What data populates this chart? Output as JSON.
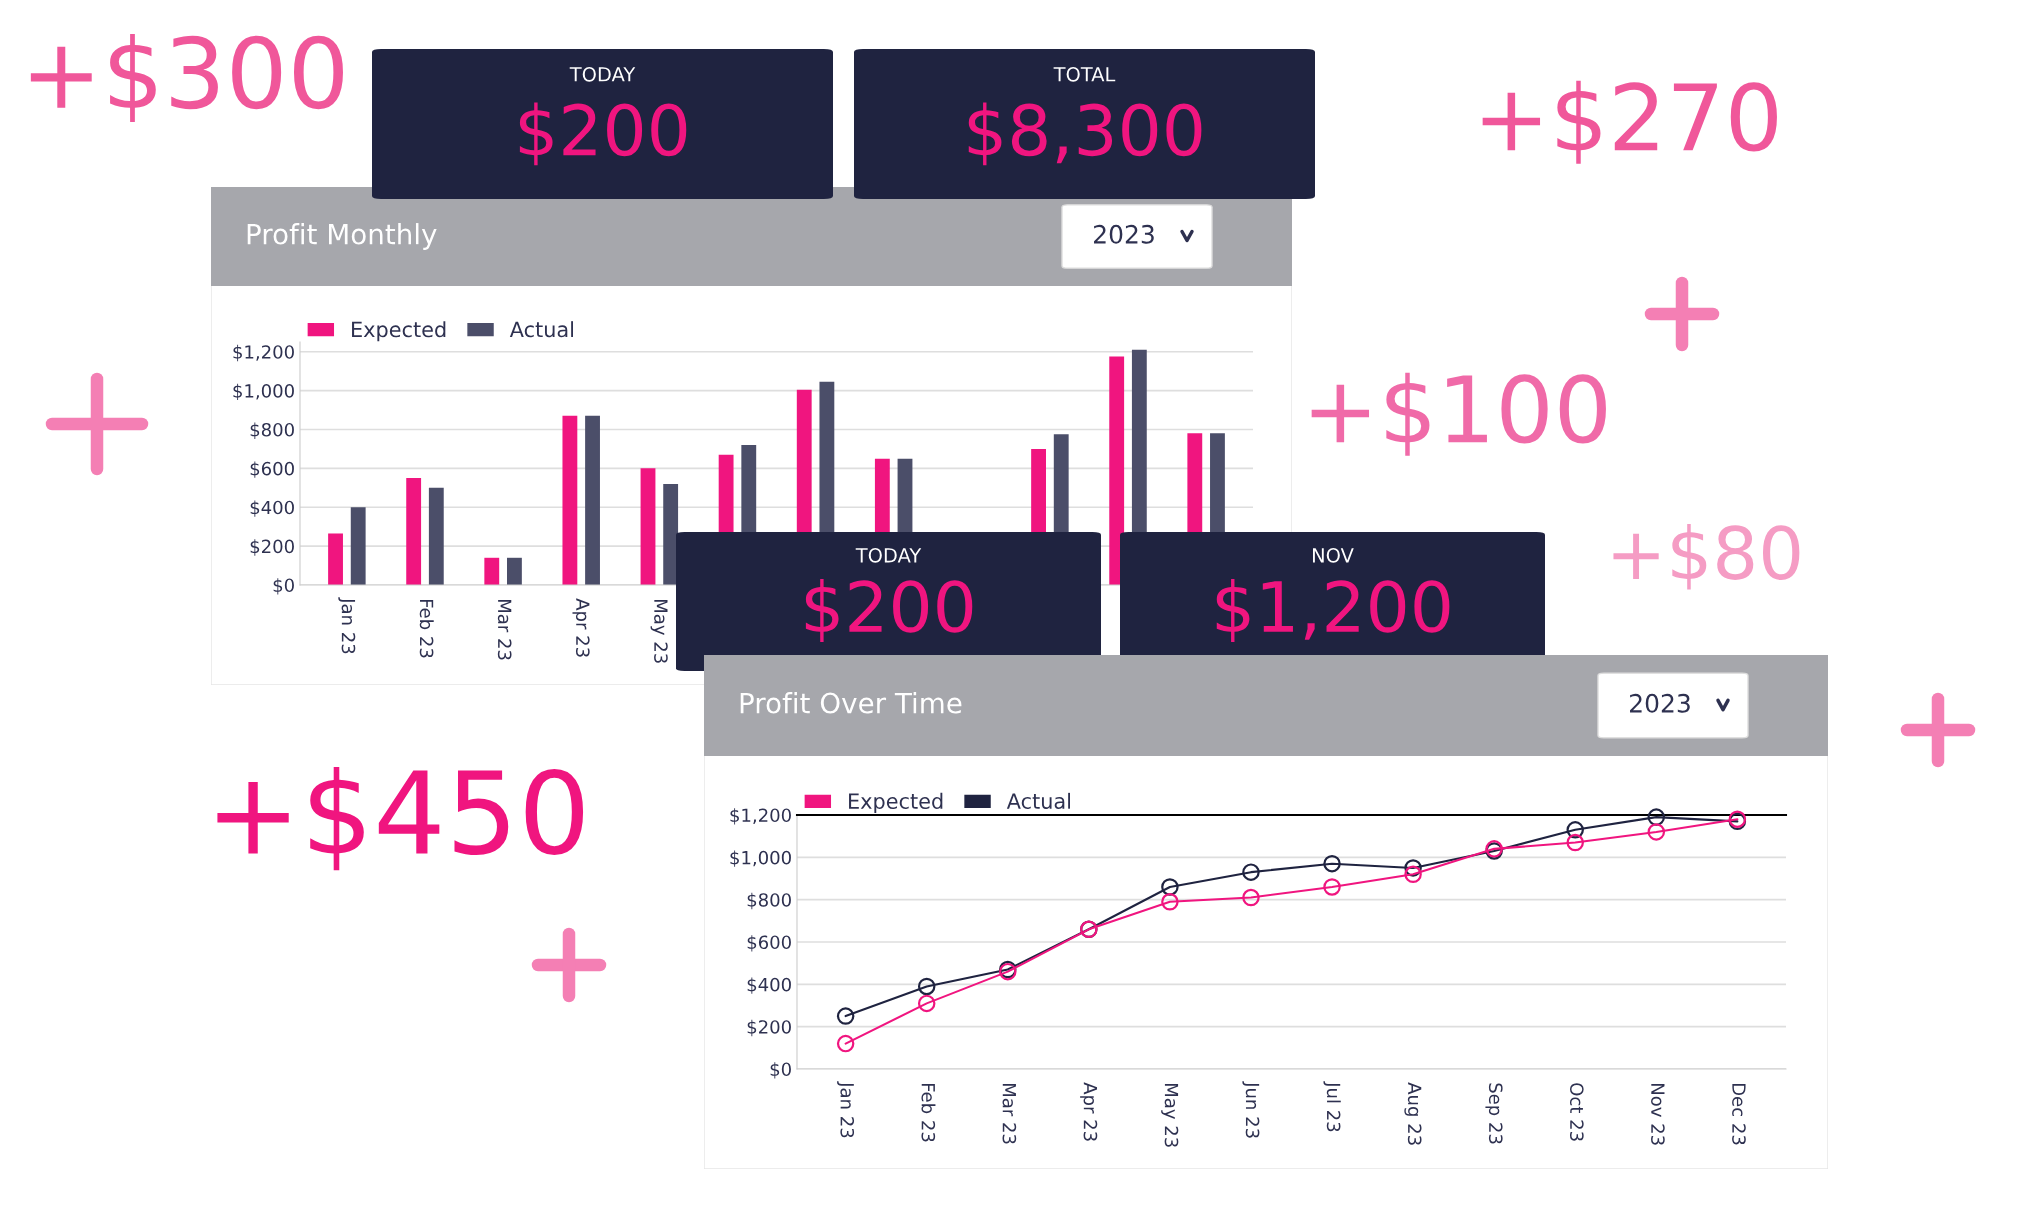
{
  "chart_data": [
    {
      "type": "bar",
      "title": "Profit Monthly",
      "annotations": [
        "2023"
      ],
      "categories": [
        "Jan 23",
        "Feb 23",
        "Mar 23",
        "Apr 23",
        "May 23",
        null,
        null,
        null,
        null,
        null,
        null,
        null
      ],
      "series": [
        {
          "name": "Expected",
          "color": "#f0157f",
          "values": [
            265,
            550,
            140,
            870,
            600,
            670,
            1005,
            650,
            null,
            700,
            1175,
            780
          ]
        },
        {
          "name": "Actual",
          "color": "#4b4e69",
          "values": [
            400,
            500,
            140,
            870,
            520,
            720,
            1045,
            650,
            null,
            775,
            1210,
            780
          ]
        }
      ],
      "ylim": [
        0,
        1250
      ],
      "yticks": [
        {
          "value": 0,
          "label": "$0"
        },
        {
          "value": 200,
          "label": "$200"
        },
        {
          "value": 400,
          "label": "$400"
        },
        {
          "value": 600,
          "label": "$600"
        },
        {
          "value": 800,
          "label": "$800"
        },
        {
          "value": 1000,
          "label": "$1,000"
        },
        {
          "value": 1200,
          "label": "$1,200"
        }
      ],
      "grid": "y",
      "legend": "top left"
    },
    {
      "type": "line",
      "title": "Profit Over Time",
      "annotations": [
        "2023"
      ],
      "categories": [
        "Jan 23",
        "Feb 23",
        "Mar 23",
        "Apr 23",
        "May 23",
        "Jun 23",
        "Jul 23",
        "Aug 23",
        "Sep 23",
        "Oct 23",
        "Nov 23",
        "Dec 23"
      ],
      "series": [
        {
          "name": "Expected",
          "color": "#f0157f",
          "values": [
            120,
            310,
            460,
            660,
            790,
            810,
            860,
            920,
            1040,
            1070,
            1120,
            1180
          ]
        },
        {
          "name": "Actual",
          "color": "#1f2340",
          "values": [
            250,
            390,
            470,
            660,
            860,
            930,
            970,
            950,
            1030,
            1130,
            1190,
            1170
          ]
        }
      ],
      "ylim": [
        0,
        1200
      ],
      "yticks": [
        {
          "value": 0,
          "label": "$0"
        },
        {
          "value": 200,
          "label": "$200"
        },
        {
          "value": 400,
          "label": "$400"
        },
        {
          "value": 600,
          "label": "$600"
        },
        {
          "value": 800,
          "label": "$800"
        },
        {
          "value": 1000,
          "label": "$1,000"
        },
        {
          "value": 1200,
          "label": "$1,200"
        }
      ],
      "grid": "y",
      "legend": "top left",
      "marker": "circle",
      "line_style": "solid"
    },
    {
      "type": "other",
      "title": "TODAY",
      "annotations": [
        "$200"
      ]
    },
    {
      "type": "other",
      "title": "TOTAL",
      "annotations": [
        "$8,300"
      ]
    },
    {
      "type": "other",
      "title": "TODAY",
      "annotations": [
        "$200"
      ]
    },
    {
      "type": "other",
      "title": "NOV",
      "annotations": [
        "$1,200"
      ]
    },
    {
      "type": "other",
      "annotations": [
        "+$300",
        "+$270",
        "+$100",
        "+$80",
        "+$450"
      ]
    }
  ]
}
